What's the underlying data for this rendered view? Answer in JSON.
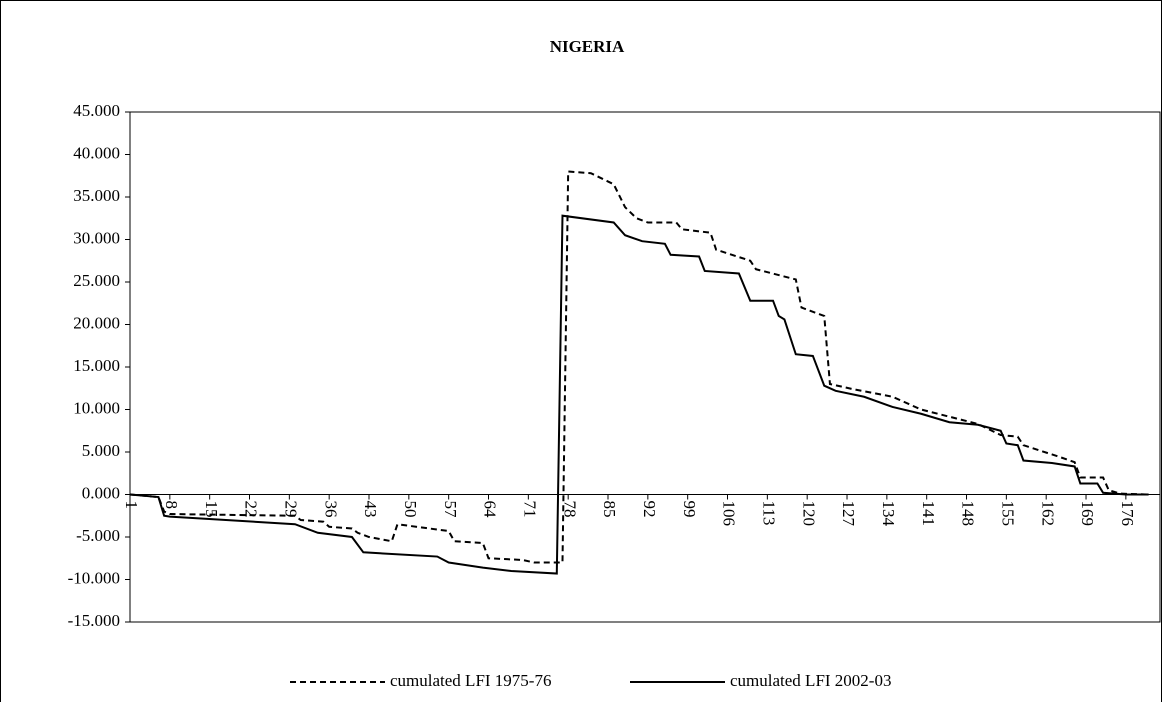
{
  "chart_data": {
    "type": "line",
    "title": "NIGERIA",
    "xlim": [
      1,
      182
    ],
    "xticks": [
      1,
      8,
      15,
      22,
      29,
      36,
      43,
      50,
      57,
      64,
      71,
      78,
      85,
      92,
      99,
      106,
      113,
      120,
      127,
      134,
      141,
      148,
      155,
      162,
      169,
      176
    ],
    "ylim": [
      -15,
      45
    ],
    "yticks": [
      {
        "value": -15,
        "label": "-15.000"
      },
      {
        "value": -10,
        "label": "-10.000"
      },
      {
        "value": -5,
        "label": "-5.000"
      },
      {
        "value": 0,
        "label": "0.000"
      },
      {
        "value": 5,
        "label": "5.000"
      },
      {
        "value": 10,
        "label": "10.000"
      },
      {
        "value": 15,
        "label": "15.000"
      },
      {
        "value": 20,
        "label": "20.000"
      },
      {
        "value": 25,
        "label": "25.000"
      },
      {
        "value": 30,
        "label": "30.000"
      },
      {
        "value": 35,
        "label": "35.000"
      },
      {
        "value": 40,
        "label": "40.000"
      },
      {
        "value": 45,
        "label": "45.000"
      }
    ],
    "series": [
      {
        "name": "cumulated LFI 1975-76",
        "color": "#000000",
        "dash": true,
        "x": [
          1,
          6,
          7,
          8,
          30,
          31,
          35,
          36,
          40,
          41,
          43,
          47,
          48,
          57,
          58,
          63,
          64,
          70,
          72,
          77,
          78,
          82,
          86,
          88,
          90,
          92,
          97,
          98,
          103,
          104,
          110,
          111,
          118,
          119,
          123,
          124,
          128,
          135,
          140,
          150,
          154,
          157,
          158,
          164,
          167,
          168,
          172,
          173,
          175,
          180
        ],
        "values": [
          0,
          -0.3,
          -2,
          -2.3,
          -2.5,
          -3,
          -3.2,
          -3.8,
          -4,
          -4.5,
          -5,
          -5.5,
          -3.5,
          -4.3,
          -5.5,
          -5.7,
          -7.5,
          -7.7,
          -8,
          -8,
          38,
          37.8,
          36.5,
          33.8,
          32.5,
          32,
          32,
          31.2,
          30.8,
          28.8,
          27.5,
          26.5,
          25.3,
          22,
          21,
          13,
          12.4,
          11.5,
          10,
          8.3,
          7,
          6.8,
          5.8,
          4.5,
          3.8,
          2,
          2,
          0.5,
          0.1,
          0
        ]
      },
      {
        "name": "cumulated LFI 2002-03",
        "color": "#000000",
        "dash": false,
        "x": [
          1,
          6,
          7,
          8,
          30,
          34,
          40,
          42,
          55,
          57,
          63,
          68,
          76,
          77,
          86,
          88,
          91,
          95,
          96,
          101,
          102,
          108,
          110,
          114,
          115,
          116,
          118,
          121,
          123,
          125,
          130,
          135,
          140,
          145,
          150,
          154,
          155,
          157,
          158,
          163,
          167,
          168,
          171,
          172,
          176,
          180
        ],
        "values": [
          0,
          -0.3,
          -2.5,
          -2.6,
          -3.5,
          -4.5,
          -5,
          -6.8,
          -7.3,
          -8,
          -8.6,
          -9,
          -9.3,
          32.8,
          32,
          30.5,
          29.8,
          29.5,
          28.2,
          28,
          26.3,
          26,
          22.8,
          22.8,
          21,
          20.6,
          16.5,
          16.3,
          12.8,
          12.2,
          11.5,
          10.3,
          9.5,
          8.5,
          8.2,
          7.5,
          6,
          5.8,
          4,
          3.7,
          3.3,
          1.3,
          1.3,
          0.2,
          0,
          0
        ]
      }
    ],
    "legend": "bottom"
  }
}
